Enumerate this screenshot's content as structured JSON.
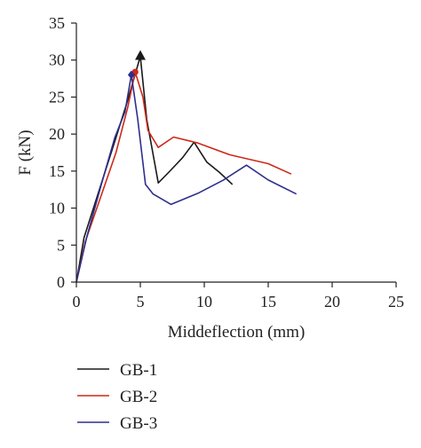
{
  "chart_data": {
    "type": "line",
    "xlabel": "Middeflection (mm)",
    "ylabel": "F (kN)",
    "xlim": [
      0,
      25
    ],
    "ylim": [
      0,
      35
    ],
    "xticks": [
      0,
      5,
      10,
      15,
      20,
      25
    ],
    "yticks": [
      0,
      5,
      10,
      15,
      20,
      25,
      30,
      35
    ],
    "grid": false,
    "legend_position": "below",
    "series": [
      {
        "name": "GB-1",
        "color": "#1a1a1a",
        "x": [
          0,
          0.6,
          1.8,
          3.0,
          4.0,
          5.0,
          5.5,
          6.4,
          7.2,
          8.3,
          9.2,
          10.2,
          11.2,
          12.2
        ],
        "y": [
          0,
          6.0,
          12.5,
          19.0,
          24.5,
          30.5,
          22.0,
          13.4,
          14.8,
          16.8,
          18.9,
          16.2,
          14.8,
          13.2
        ],
        "peak_marker": "triangle"
      },
      {
        "name": "GB-2",
        "color": "#cc2a1a",
        "x": [
          0,
          0.7,
          2.0,
          3.1,
          4.0,
          4.6,
          5.2,
          5.6,
          6.4,
          7.6,
          9.5,
          12.0,
          15.0,
          16.8
        ],
        "y": [
          0,
          5.5,
          12.0,
          17.5,
          23.5,
          28.4,
          25.0,
          20.5,
          18.2,
          19.6,
          18.8,
          17.2,
          16.0,
          14.6
        ],
        "peak_marker": "circle"
      },
      {
        "name": "GB-3",
        "color": "#2e2f8c",
        "x": [
          0,
          0.8,
          2.0,
          3.0,
          3.8,
          4.3,
          4.8,
          5.4,
          6.0,
          7.4,
          9.5,
          11.5,
          13.3,
          15.0,
          17.2
        ],
        "y": [
          0,
          6.0,
          13.5,
          19.5,
          23.0,
          28.0,
          22.0,
          13.2,
          11.9,
          10.5,
          12.0,
          13.8,
          15.8,
          13.8,
          11.9
        ],
        "peak_marker": "diamond"
      }
    ]
  }
}
